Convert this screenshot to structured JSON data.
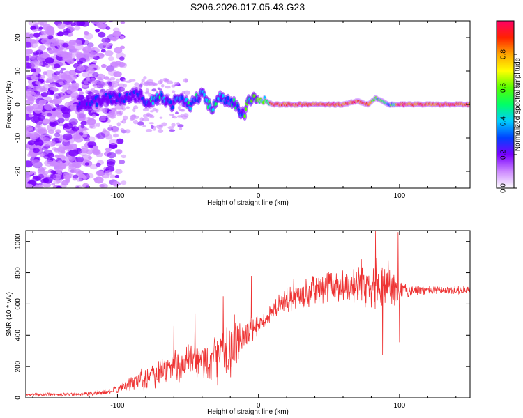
{
  "title": "S206.2026.017.05.43.G23",
  "chart_data": [
    {
      "type": "heatmap",
      "xlabel": "Height of straight line (km)",
      "ylabel": "Frequency (Hz)",
      "xlim": [
        -165,
        150
      ],
      "ylim": [
        -25,
        25
      ],
      "x_ticks": [
        -100,
        0,
        100
      ],
      "x_tick_labels": [
        "-100",
        "0",
        "100"
      ],
      "y_ticks": [
        -20,
        -10,
        0,
        10,
        20
      ],
      "y_tick_labels": [
        "-20",
        "-10",
        "0",
        "10",
        "20"
      ],
      "ridge": {
        "x": [
          -125,
          -115,
          -105,
          -95,
          -85,
          -78,
          -70,
          -62,
          -55,
          -48,
          -40,
          -33,
          -27,
          -22,
          -17,
          -13,
          -10,
          -7,
          -3,
          0,
          5,
          10,
          20,
          40,
          60,
          70,
          78,
          83,
          88,
          93,
          100,
          120,
          150
        ],
        "y": [
          0,
          1,
          2,
          2,
          3,
          0,
          3,
          0,
          2,
          0,
          3,
          -1,
          2,
          1,
          0,
          -2,
          -3,
          1,
          2,
          2,
          1,
          0,
          0,
          0,
          0,
          1,
          0,
          2,
          1,
          0,
          0,
          0,
          0
        ]
      },
      "colorbar": {
        "label": "Normalized spectral amplitude",
        "range": [
          0,
          1
        ],
        "ticks": [
          0.0,
          0.2,
          0.4,
          0.6,
          0.8
        ],
        "tick_labels": [
          "0.0",
          "0.2",
          "0.4",
          "0.6",
          "0.8"
        ],
        "colors": [
          "#ffffff",
          "#cc88ff",
          "#7a00ff",
          "#0040ff",
          "#00ccff",
          "#00ff66",
          "#55ff00",
          "#ffff00",
          "#ffa500",
          "#ff2200",
          "#ff0066"
        ]
      }
    },
    {
      "type": "line",
      "xlabel": "Height of straight line (km)",
      "ylabel": "SNR (10 * v/v)",
      "xlim": [
        -165,
        150
      ],
      "ylim": [
        0,
        1070
      ],
      "x_ticks": [
        -100,
        0,
        100
      ],
      "x_tick_labels": [
        "-100",
        "0",
        "100"
      ],
      "y_ticks": [
        0,
        200,
        400,
        600,
        800,
        1000
      ],
      "y_tick_labels": [
        "0",
        "200",
        "400",
        "600",
        "800",
        "1000"
      ],
      "color": "#ee3333",
      "series": [
        {
          "name": "SNR",
          "envelope": {
            "x": [
              -165,
              -140,
              -120,
              -105,
              -95,
              -85,
              -75,
              -60,
              -50,
              -40,
              -30,
              -22,
              -15,
              -10,
              -5,
              0,
              5,
              10,
              20,
              30,
              40,
              55,
              70,
              80,
              90,
              95,
              100,
              110,
              130,
              150
            ],
            "mean": [
              20,
              22,
              25,
              40,
              70,
              120,
              150,
              200,
              220,
              230,
              250,
              300,
              360,
              400,
              440,
              470,
              500,
              560,
              620,
              660,
              690,
              720,
              730,
              740,
              720,
              710,
              680,
              690,
              685,
              690
            ],
            "spread": [
              10,
              12,
              15,
              20,
              40,
              80,
              110,
              130,
              150,
              160,
              180,
              200,
              190,
              160,
              120,
              80,
              70,
              80,
              90,
              100,
              110,
              120,
              150,
              170,
              200,
              150,
              80,
              40,
              30,
              30
            ]
          },
          "spikes": [
            {
              "x": -60,
              "y": 460
            },
            {
              "x": -45,
              "y": 540
            },
            {
              "x": -25,
              "y": 650
            },
            {
              "x": -5,
              "y": 780
            },
            {
              "x": 25,
              "y": 760
            },
            {
              "x": 83,
              "y": 1070
            },
            {
              "x": 88,
              "y": 275
            },
            {
              "x": 92,
              "y": 880
            },
            {
              "x": 99,
              "y": 1060
            },
            {
              "x": 100,
              "y": 355
            }
          ]
        }
      ]
    }
  ]
}
